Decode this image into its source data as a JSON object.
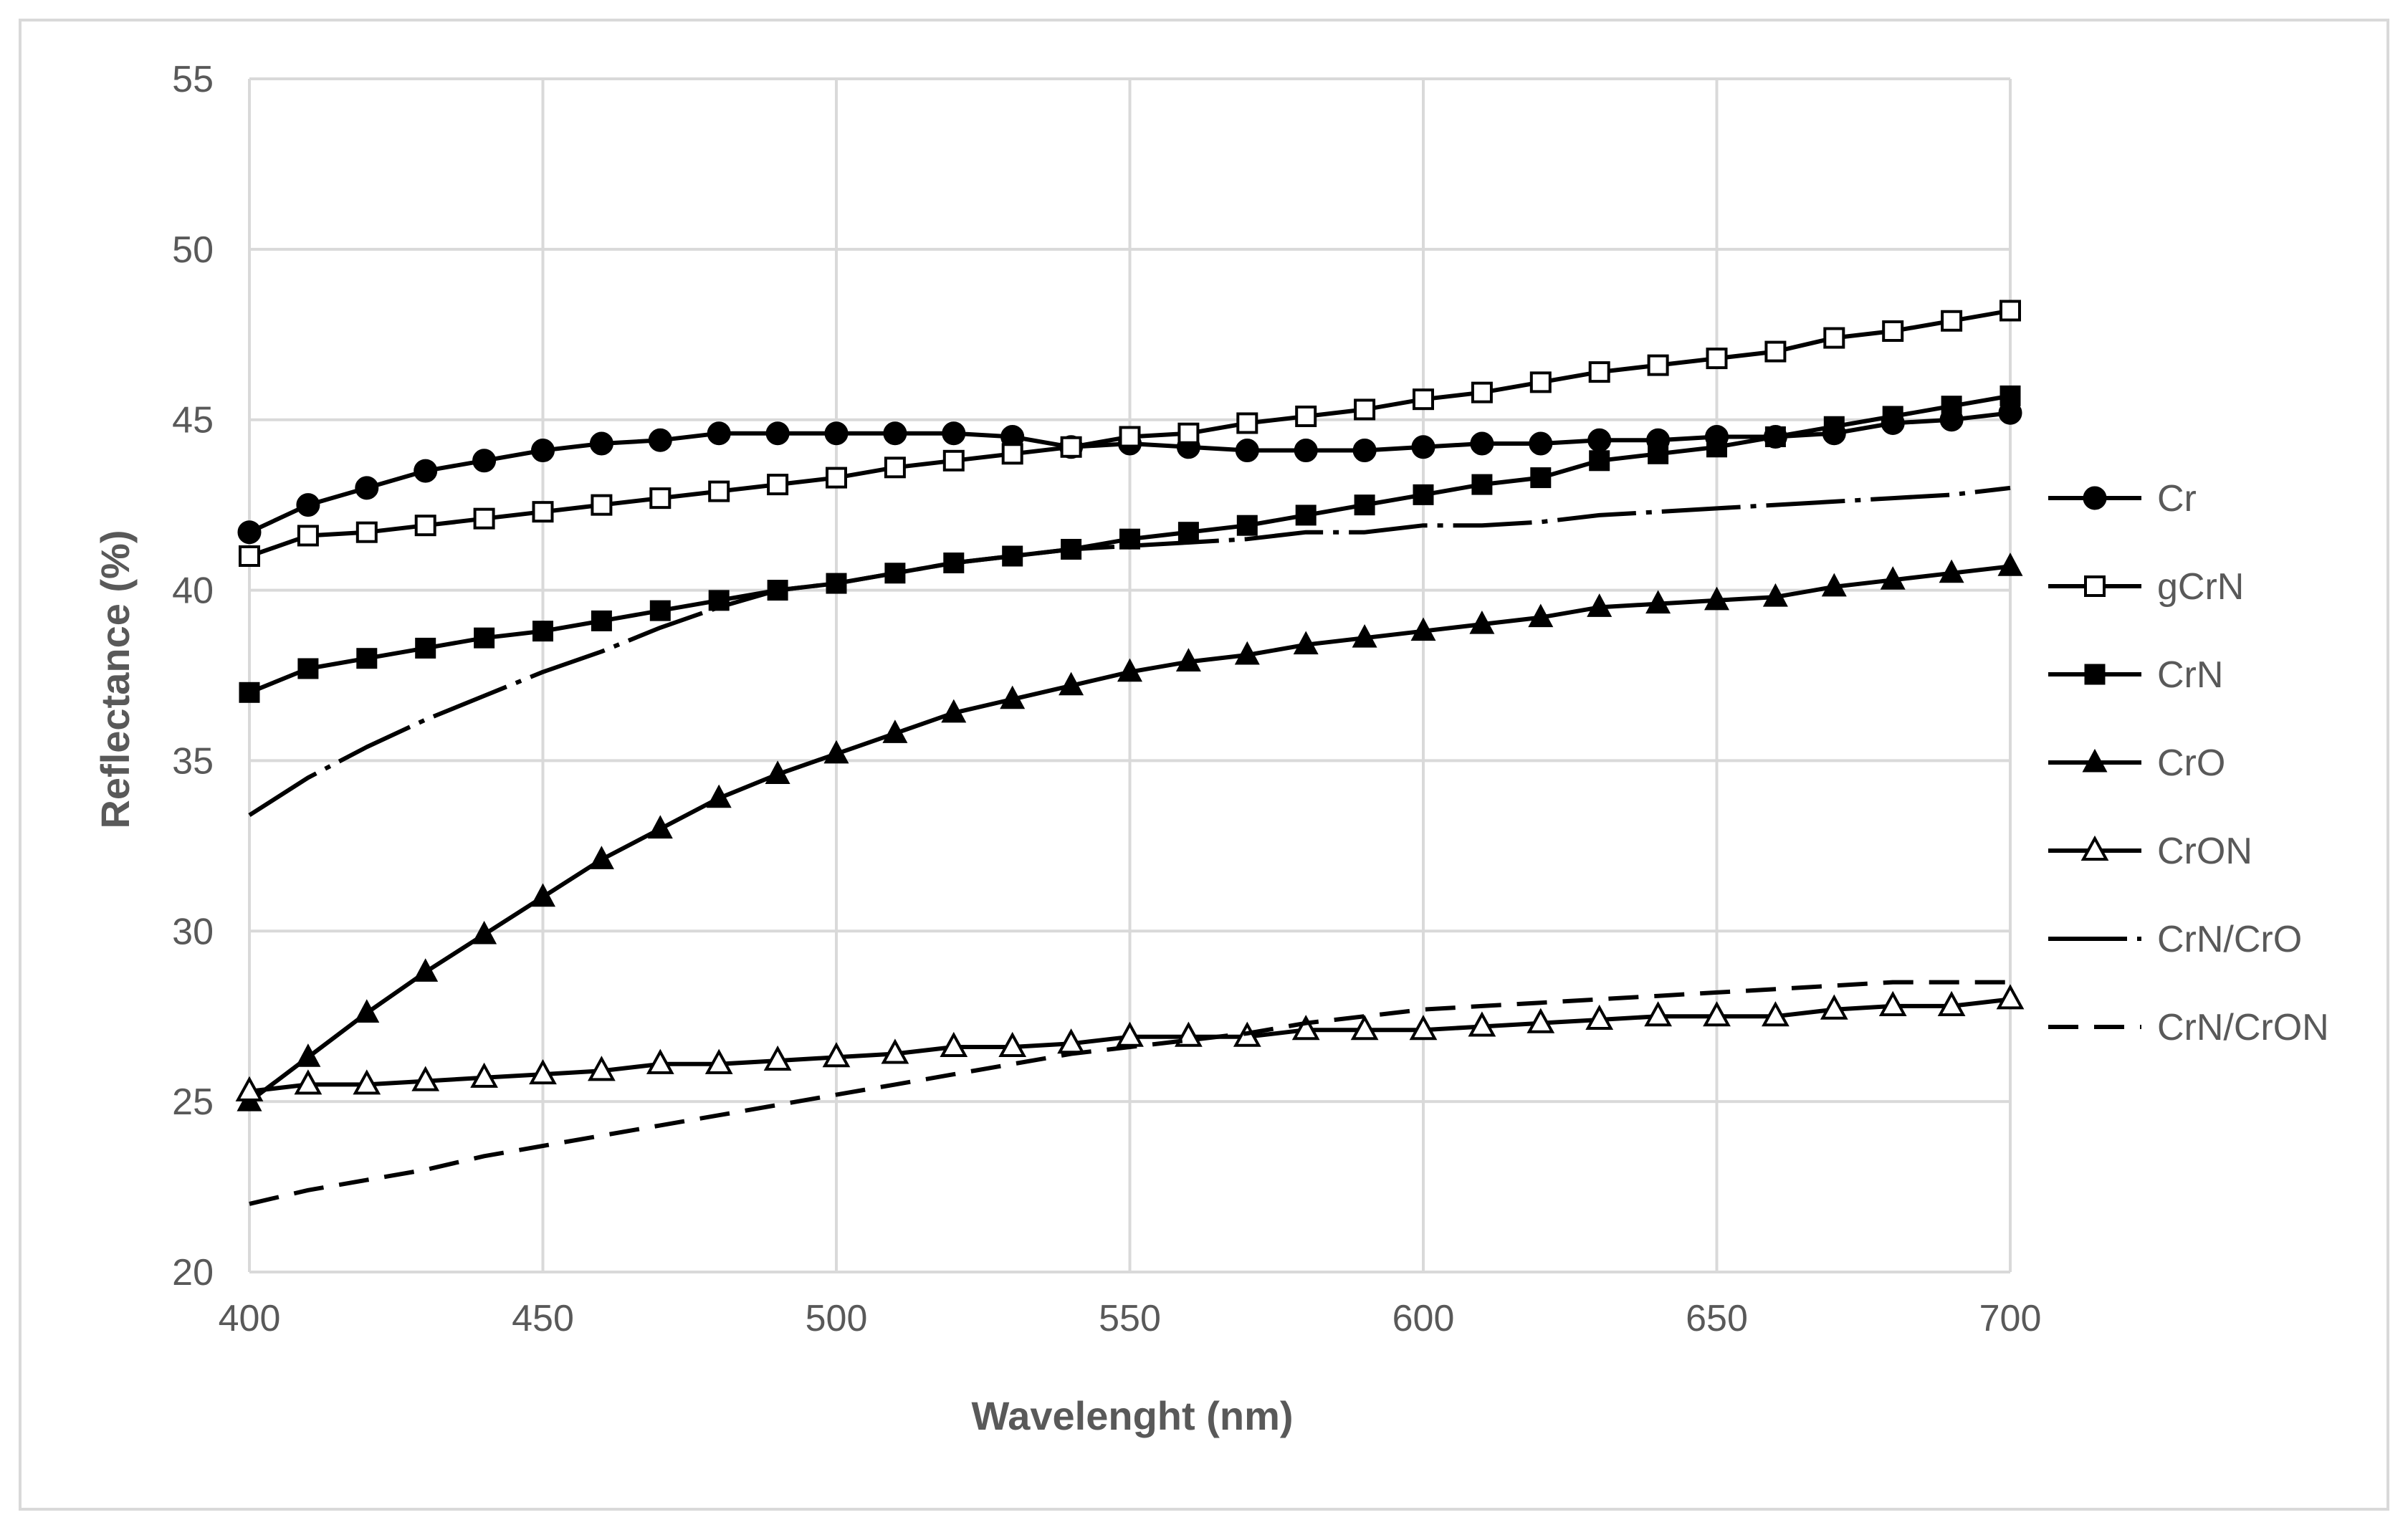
{
  "chart_data": {
    "type": "line",
    "title": "",
    "xlabel": "Wavelenght (nm)",
    "ylabel": "Reflectance (%)",
    "xlim": [
      400,
      700
    ],
    "ylim": [
      20,
      55
    ],
    "x_ticks": [
      400,
      450,
      500,
      550,
      600,
      650,
      700
    ],
    "y_ticks": [
      20,
      25,
      30,
      35,
      40,
      45,
      50,
      55
    ],
    "grid": true,
    "legend_position": "right",
    "x": [
      400,
      410,
      420,
      430,
      440,
      450,
      460,
      470,
      480,
      490,
      500,
      510,
      520,
      530,
      540,
      550,
      560,
      570,
      580,
      590,
      600,
      610,
      620,
      630,
      640,
      650,
      660,
      670,
      680,
      690,
      700
    ],
    "series": [
      {
        "name": "Cr",
        "style": "filled-circle",
        "color": "#000000",
        "values": [
          41.7,
          42.5,
          43.0,
          43.5,
          43.8,
          44.1,
          44.3,
          44.4,
          44.6,
          44.6,
          44.6,
          44.6,
          44.6,
          44.5,
          44.2,
          44.3,
          44.2,
          44.1,
          44.1,
          44.1,
          44.2,
          44.3,
          44.3,
          44.4,
          44.4,
          44.5,
          44.5,
          44.6,
          44.9,
          45.0,
          45.2
        ]
      },
      {
        "name": "gCrN",
        "style": "open-square",
        "color": "#000000",
        "values": [
          41.0,
          41.6,
          41.7,
          41.9,
          42.1,
          42.3,
          42.5,
          42.7,
          42.9,
          43.1,
          43.3,
          43.6,
          43.8,
          44.0,
          44.2,
          44.5,
          44.6,
          44.9,
          45.1,
          45.3,
          45.6,
          45.8,
          46.1,
          46.4,
          46.6,
          46.8,
          47.0,
          47.4,
          47.6,
          47.9,
          48.2
        ]
      },
      {
        "name": "CrN",
        "style": "filled-square",
        "color": "#000000",
        "values": [
          37.0,
          37.7,
          38.0,
          38.3,
          38.6,
          38.8,
          39.1,
          39.4,
          39.7,
          40.0,
          40.2,
          40.5,
          40.8,
          41.0,
          41.2,
          41.5,
          41.7,
          41.9,
          42.2,
          42.5,
          42.8,
          43.1,
          43.3,
          43.8,
          44.0,
          44.2,
          44.5,
          44.8,
          45.1,
          45.4,
          45.7
        ]
      },
      {
        "name": "CrO",
        "style": "filled-triangle",
        "color": "#000000",
        "values": [
          25.0,
          26.3,
          27.6,
          28.8,
          29.9,
          31.0,
          32.1,
          33.0,
          33.9,
          34.6,
          35.2,
          35.8,
          36.4,
          36.8,
          37.2,
          37.6,
          37.9,
          38.1,
          38.4,
          38.6,
          38.8,
          39.0,
          39.2,
          39.5,
          39.6,
          39.7,
          39.8,
          40.1,
          40.3,
          40.5,
          40.7
        ]
      },
      {
        "name": "CrON",
        "style": "open-triangle",
        "color": "#000000",
        "values": [
          25.3,
          25.5,
          25.5,
          25.6,
          25.7,
          25.8,
          25.9,
          26.1,
          26.1,
          26.2,
          26.3,
          26.4,
          26.6,
          26.6,
          26.7,
          26.9,
          26.9,
          26.9,
          27.1,
          27.1,
          27.1,
          27.2,
          27.3,
          27.4,
          27.5,
          27.5,
          27.5,
          27.7,
          27.8,
          27.8,
          28.0
        ]
      },
      {
        "name": "CrN/CrO",
        "style": "long-dash-dot",
        "color": "#000000",
        "values": [
          33.4,
          34.5,
          35.4,
          36.2,
          36.9,
          37.6,
          38.2,
          38.9,
          39.5,
          40.0,
          40.2,
          40.5,
          40.8,
          41.0,
          41.2,
          41.3,
          41.4,
          41.5,
          41.7,
          41.7,
          41.9,
          41.9,
          42.0,
          42.2,
          42.3,
          42.4,
          42.5,
          42.6,
          42.7,
          42.8,
          43.0
        ]
      },
      {
        "name": "CrN/CrON",
        "style": "dashed",
        "color": "#000000",
        "values": [
          22.0,
          22.4,
          22.7,
          23.0,
          23.4,
          23.7,
          24.0,
          24.3,
          24.6,
          24.9,
          25.2,
          25.5,
          25.8,
          26.1,
          26.4,
          26.6,
          26.8,
          27.0,
          27.3,
          27.5,
          27.7,
          27.8,
          27.9,
          28.0,
          28.1,
          28.2,
          28.3,
          28.4,
          28.5,
          28.5,
          28.5
        ]
      }
    ]
  }
}
